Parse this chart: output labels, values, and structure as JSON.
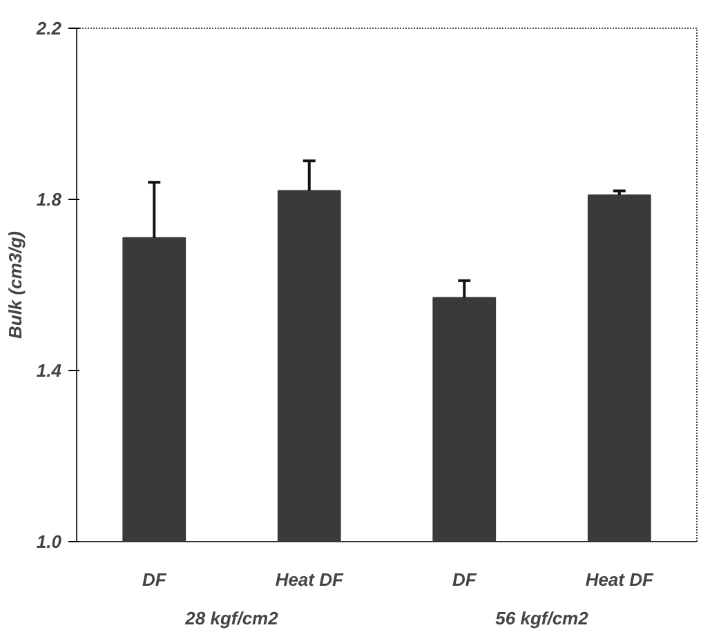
{
  "chart_data": {
    "type": "bar",
    "ylabel": "Bulk (cm3/g)",
    "categories": [
      "DF",
      "Heat DF",
      "DF",
      "Heat DF"
    ],
    "values": [
      1.71,
      1.82,
      1.57,
      1.81
    ],
    "errors": [
      [
        1.71,
        1.84
      ],
      [
        1.82,
        1.89
      ],
      [
        1.57,
        1.61
      ],
      [
        1.81,
        1.82
      ]
    ],
    "color": "#3a3a3a",
    "ylim": [
      1.0,
      2.2
    ],
    "yticks": [
      {
        "value": 1.0,
        "label": "1.0"
      },
      1.4,
      1.8,
      2.2
    ],
    "annotations": [
      "28 kgf/cm2",
      "56 kgf/cm2"
    ],
    "grid": false
  }
}
